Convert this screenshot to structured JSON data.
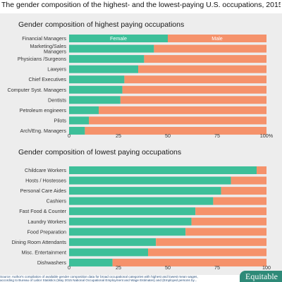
{
  "page_title": "The gender composition of the highest- and the lowest-paying U.S. occupations, 2015",
  "colors": {
    "female": "#3dbf99",
    "male": "#f5926b",
    "panel_bg": "#ededed",
    "axis_text": "#333333"
  },
  "chart_data": [
    {
      "type": "bar",
      "orientation": "horizontal",
      "stacked": true,
      "title": "Gender composition of highest paying occupations",
      "categories": [
        "Financial Managers",
        "Marketing/Sales Managers",
        "Physicians /Surgeons",
        "Lawyers",
        "Chief Executives",
        "Computer Syst. Managers",
        "Dentists",
        "Petroleum engineers",
        "Pilots",
        "Arch/Eng. Managers"
      ],
      "category_lines": [
        [
          "Financial Managers"
        ],
        [
          "Marketing/Sales",
          "Managers"
        ],
        [
          "Physicians /Surgeons"
        ],
        [
          "Lawyers"
        ],
        [
          "Chief Executives"
        ],
        [
          "Computer Syst. Managers"
        ],
        [
          "Dentists"
        ],
        [
          "Petroleum engineers"
        ],
        [
          "Pilots"
        ],
        [
          "Arch/Eng. Managers"
        ]
      ],
      "series": [
        {
          "name": "Female",
          "values": [
            50,
            43,
            38,
            35,
            28,
            27,
            26,
            15,
            10,
            8
          ]
        },
        {
          "name": "Male",
          "values": [
            50,
            57,
            62,
            65,
            72,
            73,
            74,
            85,
            90,
            92
          ]
        }
      ],
      "xlim": [
        0,
        100
      ],
      "x_ticks": [
        "0",
        "25",
        "50",
        "75",
        "100%"
      ],
      "legend": "inside-first-bar"
    },
    {
      "type": "bar",
      "orientation": "horizontal",
      "stacked": true,
      "title": "Gender composition of lowest paying occupations",
      "categories": [
        "Childcare Workers",
        "Hosts / Hostesses",
        "Personal Care Aides",
        "Cashiers",
        "Fast Food & Counter",
        "Laundry Workers",
        "Food Preparation",
        "Dining Room Attendants",
        "Misc. Entertainment",
        "Dishwashers"
      ],
      "category_lines": [
        [
          "Childcare Workers"
        ],
        [
          "Hosts / Hostesses"
        ],
        [
          "Personal Care Aides"
        ],
        [
          "Cashiers"
        ],
        [
          "Fast Food & Counter"
        ],
        [
          "Laundry Workers"
        ],
        [
          "Food Preparation"
        ],
        [
          "Dining Room Attendants"
        ],
        [
          "Misc. Entertainment"
        ],
        [
          "Dishwashers"
        ]
      ],
      "series": [
        {
          "name": "Female",
          "values": [
            95,
            82,
            77,
            73,
            64,
            62,
            59,
            44,
            40,
            22
          ]
        },
        {
          "name": "Male",
          "values": [
            5,
            18,
            23,
            27,
            36,
            38,
            41,
            56,
            60,
            78
          ]
        }
      ],
      "xlim": [
        0,
        100
      ],
      "x_ticks": [
        "0",
        "25",
        "50",
        "75",
        "100"
      ]
    }
  ],
  "footer": {
    "line1": "Source: Author's compilation of available gender composition data for broad occupational categories with highest and lowest mean wages,",
    "line2": "according to Bureau of Labor Statistics (May 2015 National Occupational Employment and Wage Estimates) and (Employed persons by..."
  },
  "logo_text": "Equitable"
}
